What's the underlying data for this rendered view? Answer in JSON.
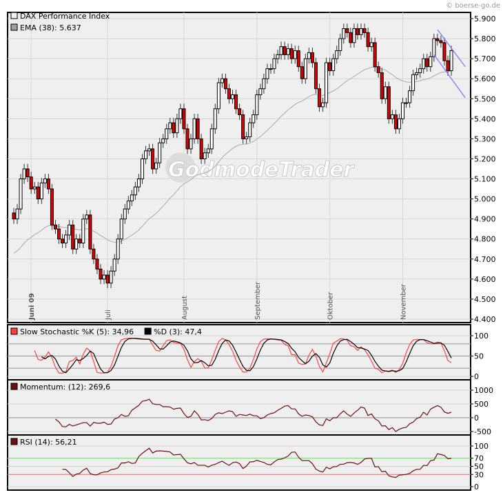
{
  "copyright": "© boerse-go.de",
  "watermark": "GodmodeTrader",
  "colors": {
    "up": "#ffffff",
    "down": "#e00000",
    "ema": "#b4b4b4",
    "trendline": "#7b7bff",
    "stoch_k": "#ff4040",
    "stoch_d": "#000000",
    "momentum": "#6b0f0f",
    "rsi": "#6b0f0f",
    "rsi_upper": "#66ee66",
    "rsi_lower": "#ff7777"
  },
  "chart_data": [
    {
      "type": "candlestick",
      "legend": [
        {
          "label": "DAX Performance Index",
          "swatch": "#f0f0f0"
        },
        {
          "label": "EMA (38): 5.637",
          "swatch": "#a0a0a0"
        }
      ],
      "y_ticks": [
        "5.900",
        "5.800",
        "5.700",
        "5.600",
        "5.500",
        "5.400",
        "5.300",
        "5.200",
        "5.100",
        "5.000",
        "4.900",
        "4.800",
        "4.700",
        "4.600",
        "4.500",
        "4.400"
      ],
      "ylim": [
        4400,
        5900
      ],
      "grid": true,
      "month_labels": [
        {
          "label": "Juni 09",
          "index": 6,
          "bold": true
        },
        {
          "label": "Juli",
          "index": 28
        },
        {
          "label": "August",
          "index": 50
        },
        {
          "label": "September",
          "index": 71
        },
        {
          "label": "Oktober",
          "index": 92
        },
        {
          "label": "November",
          "index": 113
        }
      ],
      "ema_period": 38,
      "trendlines": [
        {
          "from": [
            123,
            5845
          ],
          "to": [
            131,
            5660
          ]
        },
        {
          "from": [
            122,
            5720
          ],
          "to": [
            131,
            5505
          ]
        }
      ],
      "ohlc": [
        [
          4930,
          4955,
          4875,
          4900
        ],
        [
          4900,
          4975,
          4875,
          4950
        ],
        [
          4950,
          5125,
          4925,
          5100
        ],
        [
          5100,
          5175,
          5075,
          5150
        ],
        [
          5150,
          5175,
          5085,
          5110
        ],
        [
          5110,
          5135,
          5025,
          5050
        ],
        [
          5050,
          5085,
          5025,
          5060
        ],
        [
          5060,
          5085,
          4975,
          5000
        ],
        [
          5000,
          5105,
          4975,
          5080
        ],
        [
          5080,
          5125,
          5055,
          5100
        ],
        [
          5100,
          5125,
          5025,
          5050
        ],
        [
          5050,
          5075,
          4845,
          4870
        ],
        [
          4870,
          4895,
          4825,
          4850
        ],
        [
          4850,
          4875,
          4775,
          4800
        ],
        [
          4800,
          4825,
          4755,
          4780
        ],
        [
          4780,
          4845,
          4755,
          4820
        ],
        [
          4820,
          4895,
          4795,
          4870
        ],
        [
          4870,
          4895,
          4725,
          4750
        ],
        [
          4750,
          4825,
          4725,
          4800
        ],
        [
          4800,
          4825,
          4755,
          4780
        ],
        [
          4780,
          4925,
          4755,
          4900
        ],
        [
          4900,
          4945,
          4875,
          4920
        ],
        [
          4920,
          4945,
          4725,
          4750
        ],
        [
          4750,
          4775,
          4675,
          4700
        ],
        [
          4700,
          4725,
          4625,
          4650
        ],
        [
          4650,
          4675,
          4575,
          4600
        ],
        [
          4600,
          4645,
          4575,
          4620
        ],
        [
          4620,
          4645,
          4555,
          4580
        ],
        [
          4580,
          4665,
          4555,
          4640
        ],
        [
          4640,
          4725,
          4615,
          4700
        ],
        [
          4700,
          4825,
          4675,
          4800
        ],
        [
          4800,
          4925,
          4775,
          4900
        ],
        [
          4900,
          4975,
          4875,
          4950
        ],
        [
          4950,
          5015,
          4925,
          4990
        ],
        [
          4990,
          5045,
          4965,
          5020
        ],
        [
          5020,
          5085,
          4995,
          5060
        ],
        [
          5060,
          5125,
          5035,
          5100
        ],
        [
          5100,
          5225,
          5075,
          5200
        ],
        [
          5200,
          5265,
          5175,
          5240
        ],
        [
          5240,
          5275,
          5215,
          5250
        ],
        [
          5250,
          5275,
          5125,
          5150
        ],
        [
          5150,
          5205,
          5125,
          5180
        ],
        [
          5180,
          5305,
          5155,
          5280
        ],
        [
          5280,
          5325,
          5255,
          5300
        ],
        [
          5300,
          5375,
          5275,
          5350
        ],
        [
          5350,
          5405,
          5325,
          5380
        ],
        [
          5380,
          5405,
          5305,
          5330
        ],
        [
          5330,
          5425,
          5305,
          5400
        ],
        [
          5400,
          5475,
          5375,
          5450
        ],
        [
          5450,
          5475,
          5325,
          5350
        ],
        [
          5350,
          5375,
          5225,
          5250
        ],
        [
          5250,
          5325,
          5225,
          5300
        ],
        [
          5300,
          5425,
          5275,
          5400
        ],
        [
          5400,
          5425,
          5275,
          5300
        ],
        [
          5300,
          5325,
          5175,
          5200
        ],
        [
          5200,
          5255,
          5175,
          5230
        ],
        [
          5230,
          5275,
          5205,
          5250
        ],
        [
          5250,
          5375,
          5225,
          5350
        ],
        [
          5350,
          5475,
          5325,
          5450
        ],
        [
          5450,
          5605,
          5425,
          5580
        ],
        [
          5580,
          5625,
          5555,
          5600
        ],
        [
          5600,
          5625,
          5525,
          5550
        ],
        [
          5550,
          5575,
          5475,
          5500
        ],
        [
          5500,
          5545,
          5475,
          5520
        ],
        [
          5520,
          5545,
          5425,
          5450
        ],
        [
          5450,
          5475,
          5395,
          5420
        ],
        [
          5420,
          5445,
          5275,
          5300
        ],
        [
          5300,
          5335,
          5275,
          5310
        ],
        [
          5310,
          5405,
          5285,
          5380
        ],
        [
          5380,
          5445,
          5355,
          5420
        ],
        [
          5420,
          5545,
          5395,
          5520
        ],
        [
          5520,
          5575,
          5495,
          5550
        ],
        [
          5550,
          5625,
          5525,
          5600
        ],
        [
          5600,
          5675,
          5575,
          5650
        ],
        [
          5650,
          5675,
          5625,
          5650
        ],
        [
          5650,
          5725,
          5625,
          5700
        ],
        [
          5700,
          5745,
          5675,
          5720
        ],
        [
          5720,
          5785,
          5695,
          5760
        ],
        [
          5760,
          5785,
          5695,
          5720
        ],
        [
          5720,
          5775,
          5695,
          5750
        ],
        [
          5750,
          5775,
          5675,
          5700
        ],
        [
          5700,
          5765,
          5675,
          5740
        ],
        [
          5740,
          5765,
          5635,
          5660
        ],
        [
          5660,
          5685,
          5575,
          5600
        ],
        [
          5600,
          5725,
          5575,
          5700
        ],
        [
          5700,
          5755,
          5675,
          5730
        ],
        [
          5730,
          5755,
          5655,
          5680
        ],
        [
          5680,
          5705,
          5525,
          5550
        ],
        [
          5550,
          5575,
          5435,
          5460
        ],
        [
          5460,
          5505,
          5435,
          5480
        ],
        [
          5480,
          5705,
          5455,
          5680
        ],
        [
          5680,
          5705,
          5615,
          5640
        ],
        [
          5640,
          5725,
          5615,
          5700
        ],
        [
          5700,
          5765,
          5675,
          5740
        ],
        [
          5740,
          5825,
          5715,
          5800
        ],
        [
          5800,
          5875,
          5775,
          5850
        ],
        [
          5850,
          5875,
          5805,
          5830
        ],
        [
          5830,
          5855,
          5755,
          5780
        ],
        [
          5780,
          5875,
          5755,
          5850
        ],
        [
          5850,
          5875,
          5795,
          5820
        ],
        [
          5820,
          5875,
          5795,
          5850
        ],
        [
          5850,
          5875,
          5805,
          5830
        ],
        [
          5830,
          5855,
          5735,
          5760
        ],
        [
          5760,
          5805,
          5735,
          5780
        ],
        [
          5780,
          5805,
          5635,
          5660
        ],
        [
          5660,
          5685,
          5605,
          5630
        ],
        [
          5630,
          5655,
          5475,
          5500
        ],
        [
          5500,
          5585,
          5475,
          5560
        ],
        [
          5560,
          5585,
          5375,
          5400
        ],
        [
          5400,
          5445,
          5375,
          5420
        ],
        [
          5420,
          5445,
          5325,
          5350
        ],
        [
          5350,
          5425,
          5325,
          5400
        ],
        [
          5400,
          5505,
          5375,
          5480
        ],
        [
          5480,
          5505,
          5455,
          5480
        ],
        [
          5480,
          5565,
          5455,
          5540
        ],
        [
          5540,
          5645,
          5515,
          5620
        ],
        [
          5620,
          5655,
          5595,
          5630
        ],
        [
          5630,
          5675,
          5605,
          5650
        ],
        [
          5650,
          5725,
          5625,
          5700
        ],
        [
          5700,
          5725,
          5635,
          5660
        ],
        [
          5660,
          5735,
          5635,
          5710
        ],
        [
          5710,
          5825,
          5685,
          5800
        ],
        [
          5800,
          5825,
          5765,
          5790
        ],
        [
          5790,
          5815,
          5755,
          5780
        ],
        [
          5780,
          5805,
          5665,
          5690
        ],
        [
          5690,
          5715,
          5615,
          5640
        ],
        [
          5640,
          5765,
          5615,
          5740
        ]
      ]
    },
    {
      "type": "line",
      "legend": [
        {
          "label": "Slow Stochastic %K (5): 34,96",
          "swatch": "#ff4040"
        },
        {
          "label": "%D (3): 47,4",
          "swatch": "#000000"
        }
      ],
      "y_ticks": [
        "100",
        "50",
        "0"
      ],
      "ylim": [
        0,
        100
      ],
      "levels": [
        80,
        50,
        20
      ]
    },
    {
      "type": "line",
      "legend": [
        {
          "label": "Momentum: (12): 269,6",
          "swatch": "#6b0f0f"
        }
      ],
      "y_ticks": [
        "1000",
        "500",
        "0",
        "-500"
      ],
      "ylim": [
        -500,
        1000
      ],
      "levels": [
        0
      ]
    },
    {
      "type": "line",
      "legend": [
        {
          "label": "RSI (14): 56,21",
          "swatch": "#6b0f0f"
        }
      ],
      "y_ticks": [
        "100",
        "70",
        "50",
        "30",
        "0"
      ],
      "ylim": [
        0,
        100
      ],
      "levels": [
        70,
        30
      ]
    }
  ]
}
